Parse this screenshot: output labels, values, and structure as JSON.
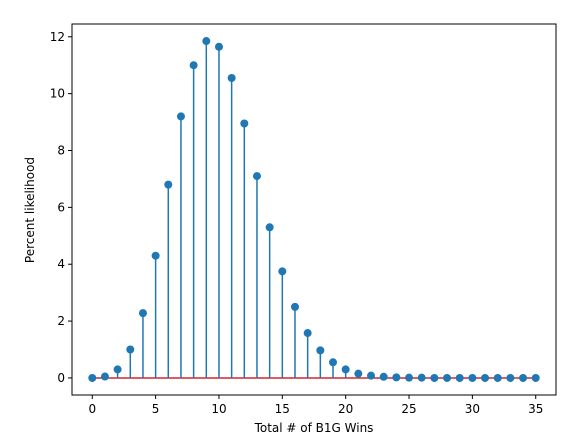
{
  "chart_data": {
    "type": "stem",
    "xlabel": "Total # of B1G Wins",
    "ylabel": "Percent likelihood",
    "x": [
      0,
      1,
      2,
      3,
      4,
      5,
      6,
      7,
      8,
      9,
      10,
      11,
      12,
      13,
      14,
      15,
      16,
      17,
      18,
      19,
      20,
      21,
      22,
      23,
      24,
      25,
      26,
      27,
      28,
      29,
      30,
      31,
      32,
      33,
      34,
      35
    ],
    "values": [
      0,
      0.05,
      0.3,
      1.0,
      2.28,
      4.3,
      6.8,
      9.2,
      11.0,
      11.85,
      11.65,
      10.55,
      8.95,
      7.1,
      5.3,
      3.75,
      2.5,
      1.58,
      0.97,
      0.55,
      0.3,
      0.15,
      0.08,
      0.04,
      0.02,
      0.01,
      0.01,
      0,
      0,
      0,
      0,
      0,
      0,
      0,
      0,
      0
    ],
    "color": "#1f77b4",
    "baseline_color": "#d62728",
    "xlim": [
      -1.6,
      36.6
    ],
    "ylim": [
      -0.6,
      12.45
    ],
    "xticks": [
      0,
      5,
      10,
      15,
      20,
      25,
      30,
      35
    ],
    "yticks": [
      0,
      2,
      4,
      6,
      8,
      10,
      12
    ]
  }
}
